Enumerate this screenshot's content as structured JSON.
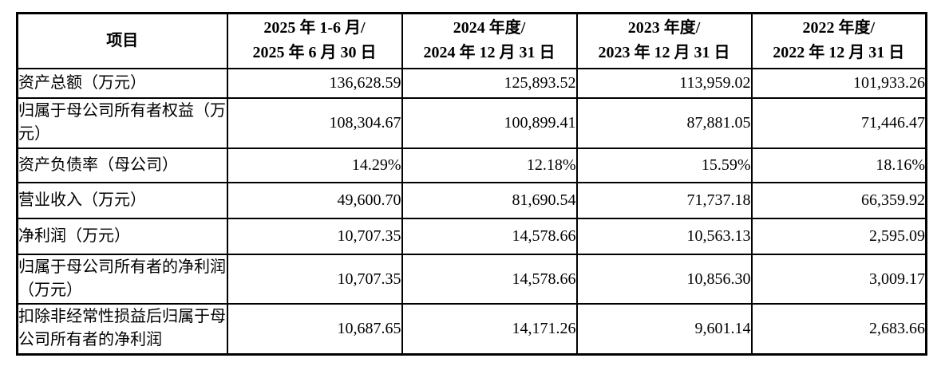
{
  "table": {
    "header": {
      "item_label": "项目",
      "columns": [
        {
          "line1": "2025 年 1-6 月/",
          "line2": "2025 年 6 月 30 日"
        },
        {
          "line1": "2024 年度/",
          "line2": "2024 年 12 月 31 日"
        },
        {
          "line1": "2023 年度/",
          "line2": "2023 年 12 月 31 日"
        },
        {
          "line1": "2022 年度/",
          "line2": "2022 年 12 月 31 日"
        }
      ]
    },
    "rows": [
      {
        "label": "资产总额（万元）",
        "values": [
          "136,628.59",
          "125,893.52",
          "113,959.02",
          "101,933.26"
        ]
      },
      {
        "label": "归属于母公司所有者权益（万元）",
        "values": [
          "108,304.67",
          "100,899.41",
          "87,881.05",
          "71,446.47"
        ]
      },
      {
        "label": "资产负债率（母公司）",
        "values": [
          "14.29%",
          "12.18%",
          "15.59%",
          "18.16%"
        ]
      },
      {
        "label": "营业收入（万元）",
        "values": [
          "49,600.70",
          "81,690.54",
          "71,737.18",
          "66,359.92"
        ]
      },
      {
        "label": "净利润（万元）",
        "values": [
          "10,707.35",
          "14,578.66",
          "10,563.13",
          "2,595.09"
        ]
      },
      {
        "label": "归属于母公司所有者的净利润（万元）",
        "values": [
          "10,707.35",
          "14,578.66",
          "10,856.30",
          "3,009.17"
        ]
      },
      {
        "label": "扣除非经常性损益后归属于母公司所有者的净利润",
        "values": [
          "10,687.65",
          "14,171.26",
          "9,601.14",
          "2,683.66"
        ]
      }
    ]
  }
}
